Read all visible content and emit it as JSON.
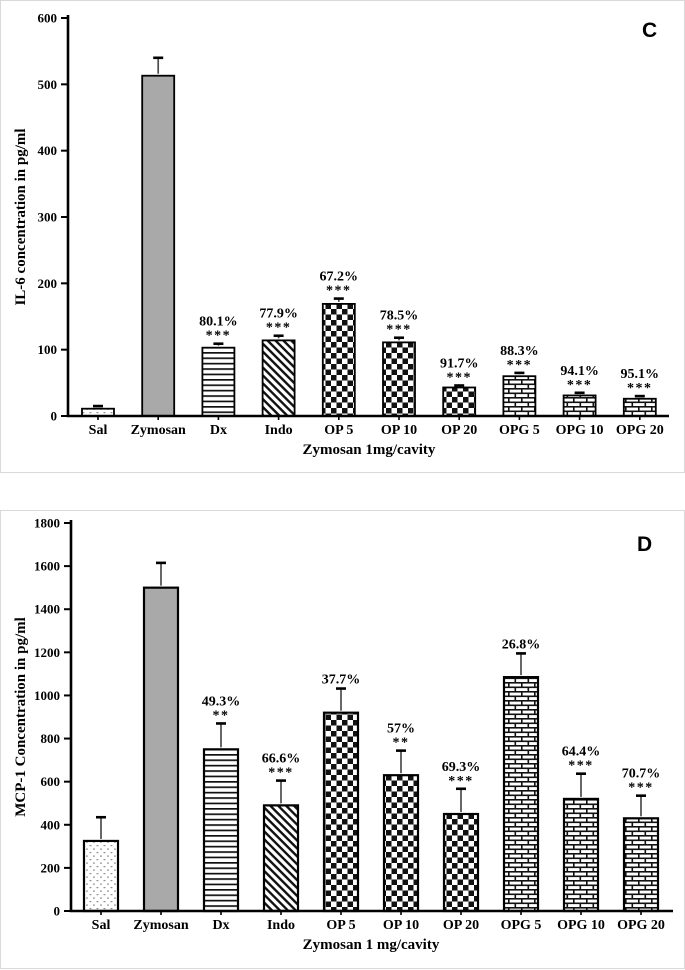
{
  "page": {
    "background": "#ffffff",
    "panel_border_color": "#d9d9d9"
  },
  "colors": {
    "bar_outline": "#000000",
    "zymosan_gray": "#a9a9a9",
    "error_bar": "#4d4d4d",
    "dot_gray": "#909090",
    "pattern_ink": "#111111"
  },
  "chart_data": [
    {
      "id": "C",
      "panel_label": "C",
      "type": "bar",
      "ylabel": "IL-6 concentration in pg/ml",
      "xlabel": "Zymosan 1mg/cavity",
      "ylim": [
        0,
        600
      ],
      "ytick_step": 100,
      "ytick_labels": [
        "0",
        "100",
        "200",
        "300",
        "400",
        "500",
        "600"
      ],
      "grid": false,
      "legend": "none",
      "categories": [
        "Sal",
        "Zymosan",
        "Dx",
        "Indo",
        "OP 5",
        "OP 10",
        "OP 20",
        "OPG 5",
        "OPG 10",
        "OPG 20"
      ],
      "values": [
        11,
        513,
        103,
        114,
        169,
        111,
        43,
        60,
        31,
        26
      ],
      "errors": [
        4,
        27,
        6,
        7,
        8,
        7,
        3,
        5,
        4,
        4
      ],
      "patterns": [
        "dots",
        "solid-gray",
        "hlines",
        "diagonal",
        "checker",
        "checker",
        "checker",
        "brick",
        "brick",
        "brick"
      ],
      "annotations": [
        {
          "index": 2,
          "percent": "80.1%",
          "stars": "***"
        },
        {
          "index": 3,
          "percent": "77.9%",
          "stars": "***"
        },
        {
          "index": 4,
          "percent": "67.2%",
          "stars": "***"
        },
        {
          "index": 5,
          "percent": "78.5%",
          "stars": "***"
        },
        {
          "index": 6,
          "percent": "91.7%",
          "stars": "***"
        },
        {
          "index": 7,
          "percent": "88.3%",
          "stars": "***"
        },
        {
          "index": 8,
          "percent": "94.1%",
          "stars": "***"
        },
        {
          "index": 9,
          "percent": "95.1%",
          "stars": "***"
        }
      ]
    },
    {
      "id": "D",
      "panel_label": "D",
      "type": "bar",
      "ylabel": "MCP-1 Concentration in pg/ml",
      "xlabel": "Zymosan 1 mg/cavity",
      "ylim": [
        0,
        1800
      ],
      "ytick_step": 200,
      "ytick_labels": [
        "0",
        "200",
        "400",
        "600",
        "800",
        "1000",
        "1200",
        "1400",
        "1600",
        "1800"
      ],
      "grid": false,
      "legend": "none",
      "categories": [
        "Sal",
        "Zymosan",
        "Dx",
        "Indo",
        "OP 5",
        "OP 10",
        "OP 20",
        "OPG 5",
        "OPG 10",
        "OPG 20"
      ],
      "values": [
        325,
        1500,
        750,
        490,
        920,
        630,
        450,
        1085,
        520,
        430
      ],
      "errors": [
        110,
        115,
        120,
        115,
        112,
        114,
        117,
        110,
        117,
        105
      ],
      "patterns": [
        "dots",
        "solid-gray",
        "hlines",
        "diagonal",
        "checker",
        "checker",
        "checker",
        "brick",
        "brick",
        "brick"
      ],
      "annotations": [
        {
          "index": 2,
          "percent": "49.3%",
          "stars": "**"
        },
        {
          "index": 3,
          "percent": "66.6%",
          "stars": "***"
        },
        {
          "index": 4,
          "percent": "37.7%",
          "stars": ""
        },
        {
          "index": 5,
          "percent": "57%",
          "stars": "**"
        },
        {
          "index": 6,
          "percent": "69.3%",
          "stars": "***"
        },
        {
          "index": 7,
          "percent": "26.8%",
          "stars": ""
        },
        {
          "index": 8,
          "percent": "64.4%",
          "stars": "***"
        },
        {
          "index": 9,
          "percent": "70.7%",
          "stars": "***"
        }
      ]
    }
  ]
}
